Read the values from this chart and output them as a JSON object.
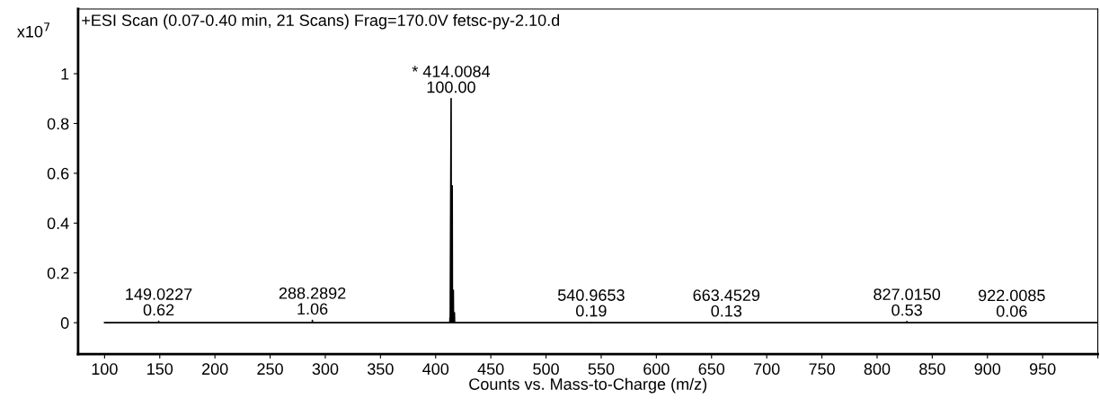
{
  "chart_data": {
    "type": "line",
    "title": "+ESI Scan (0.07-0.40 min, 21 Scans) Frag=170.0V fetsc-py-2.10.d",
    "xlabel": "Counts vs. Mass-to-Charge (m/z)",
    "annotations": [
      "x10$^{7}$",
      {
        "text": "149.0227\n0.62",
        "x": 149.0227,
        "y": 0.0056
      },
      {
        "text": "288.2892\n1.06",
        "x": 288.2892,
        "y": 0.0095
      },
      {
        "text": "* 414.0084\n100.00",
        "x": 414.0084,
        "y": 0.9
      },
      {
        "text": "540.9653\n0.19",
        "x": 540.9653,
        "y": 0.0017
      },
      {
        "text": "663.4529\n0.13",
        "x": 663.4529,
        "y": 0.0012
      },
      {
        "text": "827.0150\n0.53",
        "x": 827.015,
        "y": 0.0048
      },
      {
        "text": "922.0085\n0.06",
        "x": 922.0085,
        "y": 0.0005
      }
    ],
    "series": [
      {
        "color": "#000000",
        "x": [
          100,
          149.0227,
          149.0227,
          149.0227,
          288.2892,
          288.2892,
          288.2892,
          412.8,
          413.0,
          413.2,
          414.0084,
          414.2,
          414.9,
          415.0,
          415.2,
          415.9,
          416.0,
          416.2,
          416.9,
          417.0,
          417.2,
          540.9653,
          540.9653,
          540.9653,
          663.4529,
          663.4529,
          663.4529,
          827.015,
          827.015,
          827.015,
          922.0085,
          922.0085,
          922.0085,
          1000
        ],
        "values": [
          0,
          0,
          0.0056,
          0,
          0,
          0.0095,
          0,
          0,
          0.02,
          0,
          0.9,
          0,
          0,
          0.55,
          0,
          0,
          0.13,
          0,
          0,
          0.04,
          0,
          0,
          0.0017,
          0,
          0,
          0.0012,
          0,
          0,
          0.0048,
          0,
          0,
          0.0005,
          0,
          0
        ]
      }
    ],
    "xlim": [
      76,
      1000
    ],
    "xticks": [
      100,
      150,
      200,
      250,
      300,
      350,
      400,
      450,
      500,
      550,
      600,
      650,
      700,
      750,
      800,
      850,
      900,
      950,
      {
        "value": 1000,
        "label": null
      }
    ],
    "ylim": [
      -0.126,
      1.26
    ],
    "yticks": [
      0,
      0.2,
      0.4,
      0.6,
      0.8,
      1
    ],
    "grid": false,
    "legend": false,
    "marker": "none",
    "line_style": "solid"
  }
}
